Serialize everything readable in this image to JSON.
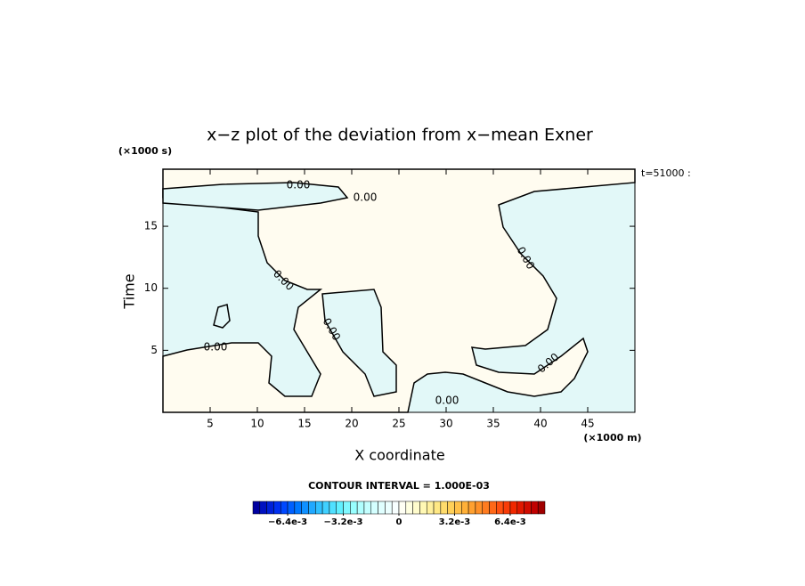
{
  "chart_data": {
    "type": "contour",
    "title": "x−z plot of the deviation from x−mean Exner",
    "xlabel": "X coordinate",
    "ylabel": "Time",
    "x_unit": "(×1000 m)",
    "y_unit": "(×1000 s)",
    "annotation": "t=51000 :",
    "xlim": [
      0,
      50
    ],
    "ylim": [
      0,
      19.6
    ],
    "xticks": [
      5,
      10,
      15,
      20,
      25,
      30,
      35,
      40,
      45
    ],
    "yticks": [
      5,
      10,
      15
    ],
    "contour_labels": [
      "0.00",
      "0.00",
      "0.00",
      "0.00",
      "0.00",
      "0.00",
      "0.00",
      "0.00"
    ],
    "contour_interval": "CONTOUR INTERVAL = 1.000E-03",
    "colorbar": {
      "lim": [
        -0.0084,
        0.0084
      ],
      "ticks": [
        {
          "value": -0.0064,
          "label": "−6.4e-3"
        },
        {
          "value": -0.0032,
          "label": "−3.2e-3"
        },
        0,
        {
          "value": 0.0032,
          "label": "3.2e-3"
        },
        {
          "value": 0.0064,
          "label": "6.4e-3"
        }
      ],
      "colors": [
        "#0000a0",
        "#0010c0",
        "#0020d8",
        "#0030f0",
        "#0048ff",
        "#0060ff",
        "#0078ff",
        "#1090ff",
        "#20a8ff",
        "#30c0ff",
        "#40d0ff",
        "#50e0ff",
        "#60f0ff",
        "#80f8ff",
        "#98ffff",
        "#b0ffff",
        "#c4ffff",
        "#d4ffff",
        "#e0ffff",
        "#ecffff",
        "#f8ffff",
        "#fffff4",
        "#ffffe0",
        "#fffccc",
        "#fff8b4",
        "#fff09c",
        "#ffe884",
        "#ffdc6c",
        "#ffd058",
        "#ffc048",
        "#ffb038",
        "#ffa030",
        "#ff9028",
        "#ff7c20",
        "#ff6818",
        "#ff5010",
        "#f83c08",
        "#f02800",
        "#e01800",
        "#d00c00",
        "#c00000",
        "#a00000"
      ]
    }
  }
}
